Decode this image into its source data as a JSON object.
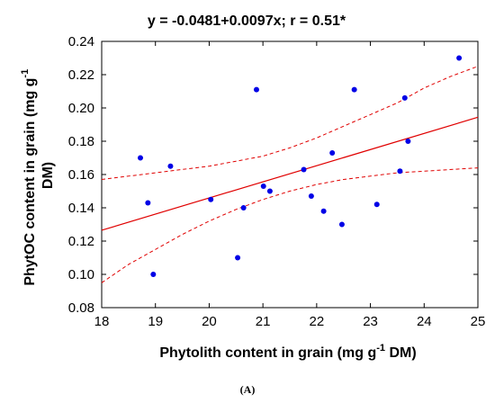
{
  "chart_data": {
    "type": "scatter",
    "title": "y = -0.0481+0.0097x; r = 0.51*",
    "xlabel": "Phytolith content in grain (mg g",
    "xlabel_sup": "-1",
    "xlabel_tail": " DM)",
    "ylabel_line1": "PhytOC content in grain (mg g",
    "ylabel_sup": "-1",
    "ylabel_line2": "DM)",
    "xlim": [
      18,
      25
    ],
    "ylim": [
      0.08,
      0.24
    ],
    "x_ticks": [
      "18",
      "19",
      "20",
      "21",
      "22",
      "23",
      "24",
      "25"
    ],
    "y_ticks": [
      "0.24",
      "0.22",
      "0.20",
      "0.18",
      "0.16",
      "0.14",
      "0.12",
      "0.10",
      "0.08"
    ],
    "points": [
      {
        "x": 18.72,
        "y": 0.17
      },
      {
        "x": 18.86,
        "y": 0.143
      },
      {
        "x": 18.96,
        "y": 0.1
      },
      {
        "x": 19.28,
        "y": 0.165
      },
      {
        "x": 20.03,
        "y": 0.145
      },
      {
        "x": 20.53,
        "y": 0.11
      },
      {
        "x": 20.64,
        "y": 0.14
      },
      {
        "x": 20.88,
        "y": 0.211
      },
      {
        "x": 21.01,
        "y": 0.153
      },
      {
        "x": 21.13,
        "y": 0.15
      },
      {
        "x": 21.76,
        "y": 0.163
      },
      {
        "x": 21.9,
        "y": 0.147
      },
      {
        "x": 22.13,
        "y": 0.138
      },
      {
        "x": 22.29,
        "y": 0.173
      },
      {
        "x": 22.47,
        "y": 0.13
      },
      {
        "x": 22.7,
        "y": 0.211
      },
      {
        "x": 23.12,
        "y": 0.142
      },
      {
        "x": 23.55,
        "y": 0.162
      },
      {
        "x": 23.64,
        "y": 0.206
      },
      {
        "x": 23.7,
        "y": 0.18
      },
      {
        "x": 24.65,
        "y": 0.23
      }
    ],
    "regression": {
      "intercept": -0.0481,
      "slope": 0.0097
    },
    "confidence_band": {
      "upper": [
        [
          18,
          0.157
        ],
        [
          19,
          0.161
        ],
        [
          20,
          0.165
        ],
        [
          20.5,
          0.168
        ],
        [
          21,
          0.171
        ],
        [
          21.5,
          0.176
        ],
        [
          22,
          0.182
        ],
        [
          22.5,
          0.189
        ],
        [
          23,
          0.196
        ],
        [
          23.5,
          0.203
        ],
        [
          24,
          0.212
        ],
        [
          24.5,
          0.219
        ],
        [
          25,
          0.225
        ]
      ],
      "lower": [
        [
          18,
          0.095
        ],
        [
          18.5,
          0.106
        ],
        [
          19,
          0.115
        ],
        [
          19.5,
          0.124
        ],
        [
          20,
          0.132
        ],
        [
          20.5,
          0.139
        ],
        [
          21,
          0.145
        ],
        [
          21.5,
          0.15
        ],
        [
          22,
          0.154
        ],
        [
          22.5,
          0.157
        ],
        [
          23,
          0.159
        ],
        [
          23.5,
          0.161
        ],
        [
          24,
          0.162
        ],
        [
          25,
          0.164
        ]
      ]
    },
    "grid": false,
    "colors": {
      "points": "#0000e6",
      "regression": "#e00000",
      "band": "#e00000",
      "axis": "#000000"
    }
  },
  "caption": "(A)"
}
